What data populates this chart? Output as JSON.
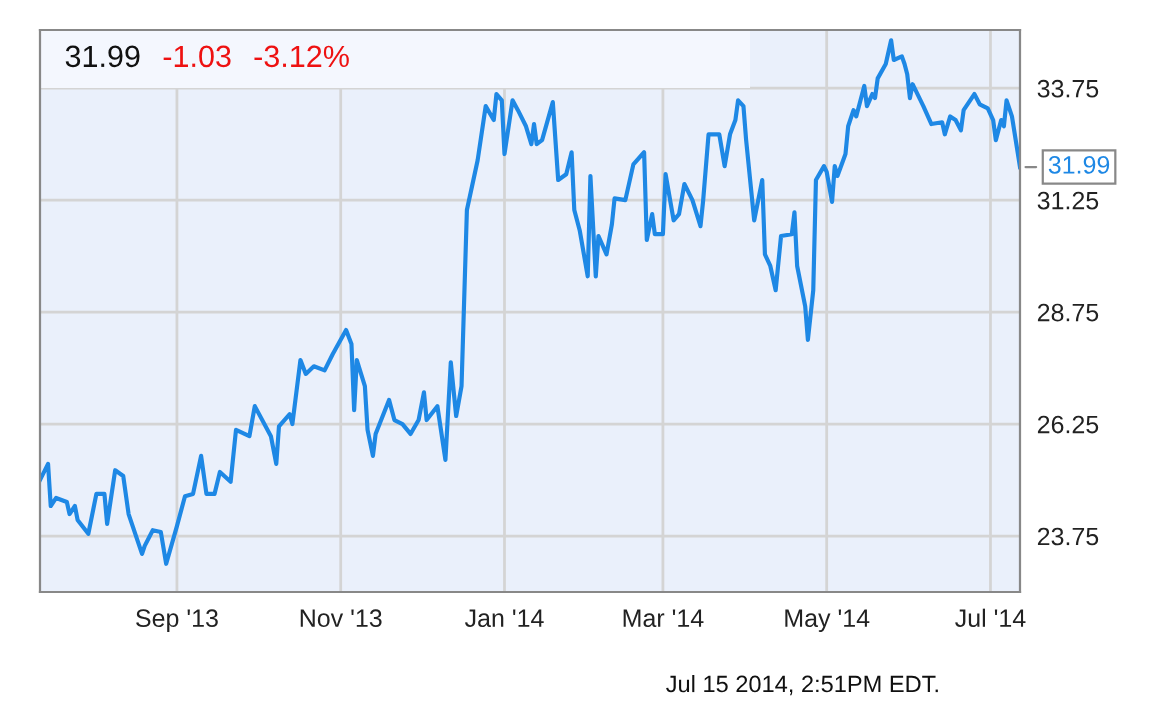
{
  "chart_data": {
    "type": "line",
    "annotations": [
      "31.99",
      "-1.03",
      "-3.12%",
      {
        "text": "31.99",
        "x": "2014-07-12",
        "y": 31.99
      },
      "Jul 15 2014, 2:51PM EDT."
    ],
    "x": [
      "2013-07-12",
      "2013-07-15",
      "2013-07-16",
      "2013-07-18",
      "2013-07-22",
      "2013-07-23",
      "2013-07-25",
      "2013-07-26",
      "2013-07-30",
      "2013-08-02",
      "2013-08-05",
      "2013-08-06",
      "2013-08-09",
      "2013-08-12",
      "2013-08-14",
      "2013-08-19",
      "2013-08-20",
      "2013-08-23",
      "2013-08-26",
      "2013-08-28",
      "2013-09-01",
      "2013-09-04",
      "2013-09-07",
      "2013-09-10",
      "2013-09-12",
      "2013-09-15",
      "2013-09-17",
      "2013-09-21",
      "2013-09-23",
      "2013-09-28",
      "2013-09-30",
      "2013-10-06",
      "2013-10-08",
      "2013-10-09",
      "2013-10-13",
      "2013-10-14",
      "2013-10-17",
      "2013-10-19",
      "2013-10-22",
      "2013-10-26",
      "2013-10-29",
      "2013-11-03",
      "2013-11-05",
      "2013-11-06",
      "2013-11-07",
      "2013-11-10",
      "2013-11-11",
      "2013-11-13",
      "2013-11-14",
      "2013-11-19",
      "2013-11-21",
      "2013-11-24",
      "2013-11-27",
      "2013-11-30",
      "2013-12-02",
      "2013-12-03",
      "2013-12-07",
      "2013-12-10",
      "2013-12-12",
      "2013-12-14",
      "2013-12-16",
      "2013-12-18",
      "2013-12-22",
      "2013-12-25",
      "2013-12-28",
      "2013-12-29",
      "2013-12-31",
      "2014-01-01",
      "2014-01-04",
      "2014-01-06",
      "2014-01-09",
      "2014-01-11",
      "2014-01-12",
      "2014-01-13",
      "2014-01-15",
      "2014-01-19",
      "2014-01-21",
      "2014-01-24",
      "2014-01-26",
      "2014-01-27",
      "2014-01-29",
      "2014-02-01",
      "2014-02-02",
      "2014-02-04",
      "2014-02-05",
      "2014-02-08",
      "2014-02-10",
      "2014-02-11",
      "2014-02-15",
      "2014-02-18",
      "2014-02-22",
      "2014-02-23",
      "2014-02-25",
      "2014-02-26",
      "2014-03-01",
      "2014-03-02",
      "2014-03-05",
      "2014-03-07",
      "2014-03-09",
      "2014-03-12",
      "2014-03-15",
      "2014-03-16",
      "2014-03-18",
      "2014-03-22",
      "2014-03-24",
      "2014-03-26",
      "2014-03-28",
      "2014-03-29",
      "2014-03-31",
      "2014-04-01",
      "2014-04-04",
      "2014-04-07",
      "2014-04-08",
      "2014-04-10",
      "2014-04-12",
      "2014-04-14",
      "2014-04-18",
      "2014-04-19",
      "2014-04-20",
      "2014-04-23",
      "2014-04-24",
      "2014-04-26",
      "2014-04-27",
      "2014-04-30",
      "2014-05-01",
      "2014-05-03",
      "2014-05-04",
      "2014-05-05",
      "2014-05-08",
      "2014-05-09",
      "2014-05-11",
      "2014-05-12",
      "2014-05-15",
      "2014-05-16",
      "2014-05-18",
      "2014-05-19",
      "2014-05-20",
      "2014-05-23",
      "2014-05-25",
      "2014-05-26",
      "2014-05-29",
      "2014-05-30",
      "2014-05-31",
      "2014-06-01",
      "2014-06-02",
      "2014-06-06",
      "2014-06-09",
      "2014-06-13",
      "2014-06-14",
      "2014-06-16",
      "2014-06-18",
      "2014-06-20",
      "2014-06-21",
      "2014-06-25",
      "2014-06-27",
      "2014-06-30",
      "2014-07-02",
      "2014-07-03",
      "2014-07-05",
      "2014-07-06",
      "2014-07-07",
      "2014-07-09",
      "2014-07-12"
    ],
    "series": [
      {
        "color": "#1e88e5",
        "values": [
          25.0,
          25.36,
          24.42,
          24.6,
          24.51,
          24.24,
          24.42,
          24.11,
          23.8,
          24.69,
          24.69,
          24.02,
          25.22,
          25.09,
          24.24,
          23.35,
          23.53,
          23.88,
          23.84,
          23.13,
          23.97,
          24.64,
          24.69,
          25.54,
          24.69,
          24.69,
          25.18,
          24.96,
          26.12,
          25.98,
          26.65,
          25.98,
          25.36,
          26.2,
          26.47,
          26.25,
          27.68,
          27.37,
          27.54,
          27.45,
          27.81,
          28.35,
          28.04,
          26.56,
          27.68,
          27.1,
          26.12,
          25.54,
          26.03,
          26.79,
          26.34,
          26.25,
          26.03,
          26.34,
          26.96,
          26.34,
          26.65,
          25.45,
          27.63,
          26.43,
          27.1,
          31.03,
          32.14,
          33.35,
          33.04,
          33.62,
          33.48,
          32.28,
          33.48,
          33.26,
          32.9,
          32.5,
          32.95,
          32.5,
          32.59,
          33.44,
          31.7,
          31.83,
          32.32,
          31.03,
          30.58,
          29.55,
          31.79,
          29.55,
          30.45,
          30.04,
          30.71,
          31.29,
          31.25,
          32.05,
          32.32,
          30.36,
          30.94,
          30.49,
          30.49,
          31.83,
          30.8,
          30.94,
          31.61,
          31.25,
          30.67,
          31.25,
          32.72,
          32.72,
          32.01,
          32.72,
          33.04,
          33.48,
          33.35,
          32.59,
          30.8,
          31.7,
          30.04,
          29.78,
          29.24,
          30.45,
          30.49,
          30.98,
          29.78,
          28.88,
          28.13,
          29.24,
          31.7,
          32.01,
          31.88,
          31.21,
          32.01,
          31.79,
          32.28,
          32.9,
          33.26,
          33.12,
          33.8,
          33.35,
          33.62,
          33.53,
          33.97,
          34.29,
          34.82,
          34.38,
          34.46,
          34.29,
          34.06,
          33.53,
          33.84,
          33.35,
          32.95,
          32.99,
          32.72,
          33.12,
          33.04,
          32.81,
          33.26,
          33.62,
          33.39,
          33.3,
          33.04,
          32.59,
          33.04,
          32.9,
          33.48,
          33.12,
          31.99
        ]
      }
    ],
    "xlim": [
      "2013-07-12",
      "2014-07-12"
    ],
    "xticks": [
      {
        "value": "2013-09-01",
        "label": "Sep '13"
      },
      {
        "value": "2013-11-01",
        "label": "Nov '13"
      },
      {
        "value": "2014-01-01",
        "label": "Jan '14"
      },
      {
        "value": "2014-03-01",
        "label": "Mar '14"
      },
      {
        "value": "2014-05-01",
        "label": "May '14"
      },
      {
        "value": "2014-07-01",
        "label": "Jul '14"
      }
    ],
    "ylim": [
      22.5,
      35.05
    ],
    "yticks": [
      23.75,
      26.25,
      28.75,
      31.25,
      33.75
    ],
    "grid": true,
    "marker": "none",
    "line_style": "solid"
  }
}
